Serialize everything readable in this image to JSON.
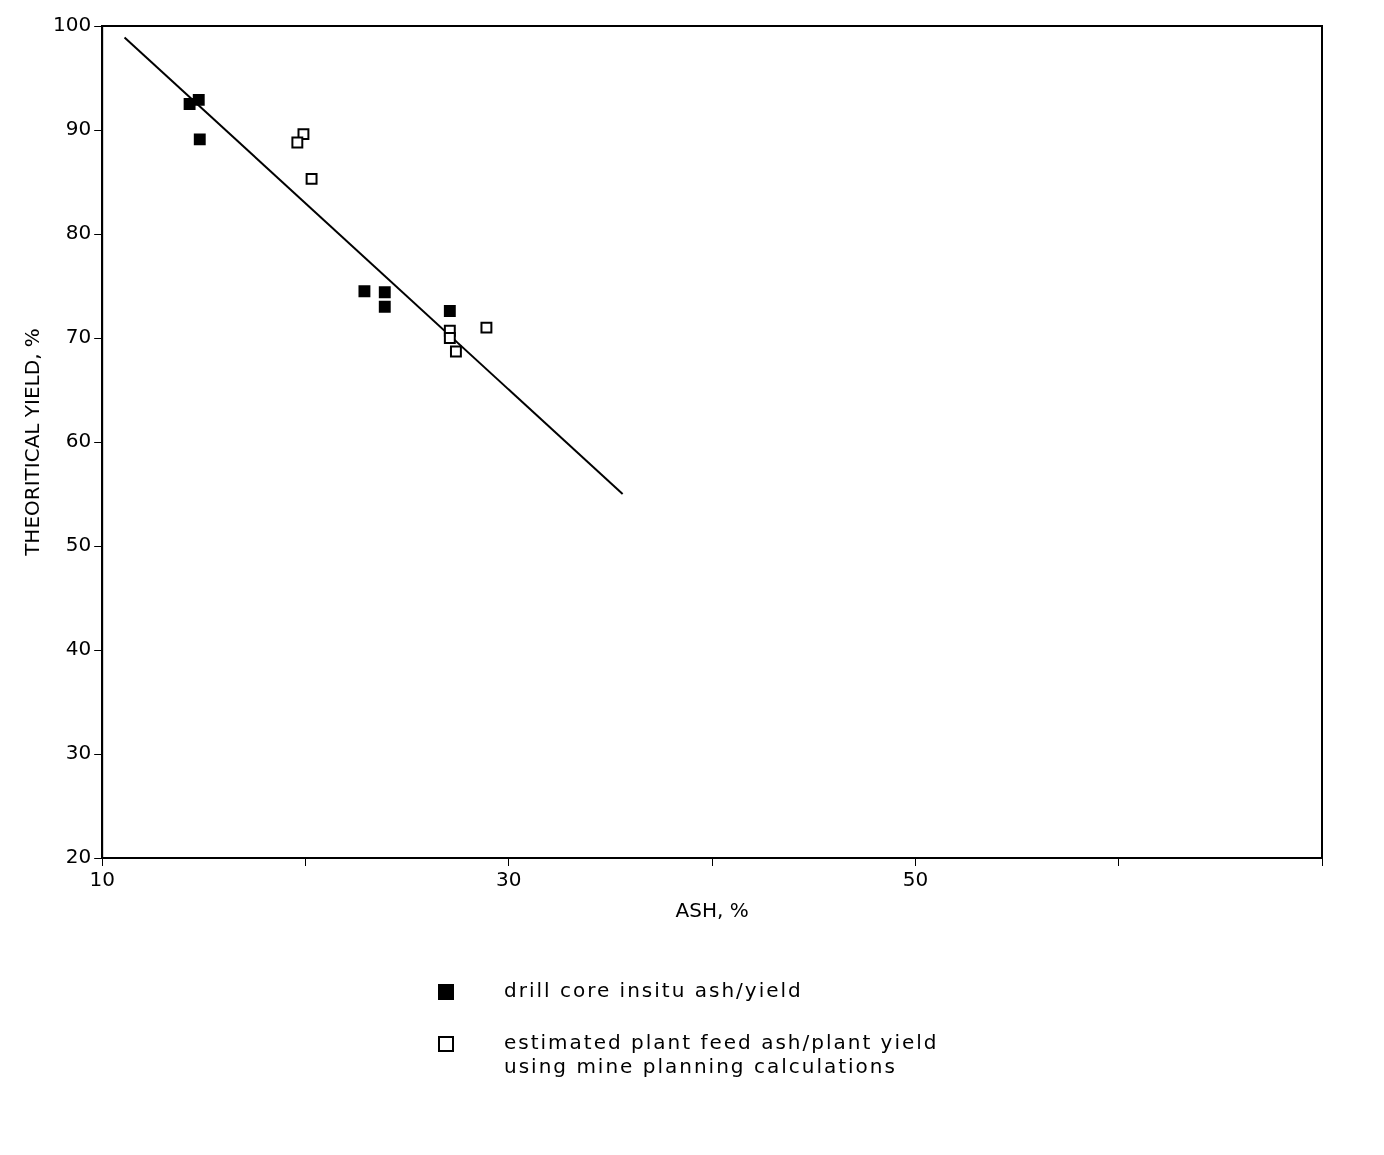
{
  "chart_data": {
    "type": "scatter",
    "xlabel": "ASH, %",
    "ylabel": "THEORITICAL YIELD, %",
    "xlim": [
      10,
      70
    ],
    "xticks": [
      10,
      {
        "value": 20,
        "label": null
      },
      30,
      {
        "value": 40,
        "label": null
      },
      50,
      {
        "value": 60,
        "label": null
      },
      {
        "value": 70,
        "label": null
      }
    ],
    "ylim": [
      20,
      100
    ],
    "yticks": [
      20,
      30,
      40,
      50,
      60,
      70,
      80,
      90,
      100
    ],
    "grid": false,
    "legend": "bottom",
    "series": [
      {
        "name": "drill core insitu ash/yield",
        "color": "#000000",
        "marker": "square",
        "x": [
          14.3,
          14.75,
          14.8,
          22.9,
          23.9,
          23.9,
          27.1
        ],
        "values": [
          92.5,
          92.9,
          89.1,
          74.5,
          74.4,
          73.0,
          72.6
        ]
      },
      {
        "name": "estimated plant feed ash/plant yield using mine planning calculations",
        "color": "#ffffff",
        "marker": "square",
        "x": [
          19.9,
          19.6,
          20.3,
          27.1,
          27.1,
          27.4,
          28.9
        ],
        "values": [
          89.6,
          88.8,
          85.3,
          70.7,
          70.0,
          68.7,
          71.0
        ]
      },
      {
        "type": "line",
        "color": "#000000",
        "marker": "none",
        "x": [
          11.1,
          35.6
        ],
        "values": [
          98.9,
          55.0
        ]
      }
    ]
  }
}
